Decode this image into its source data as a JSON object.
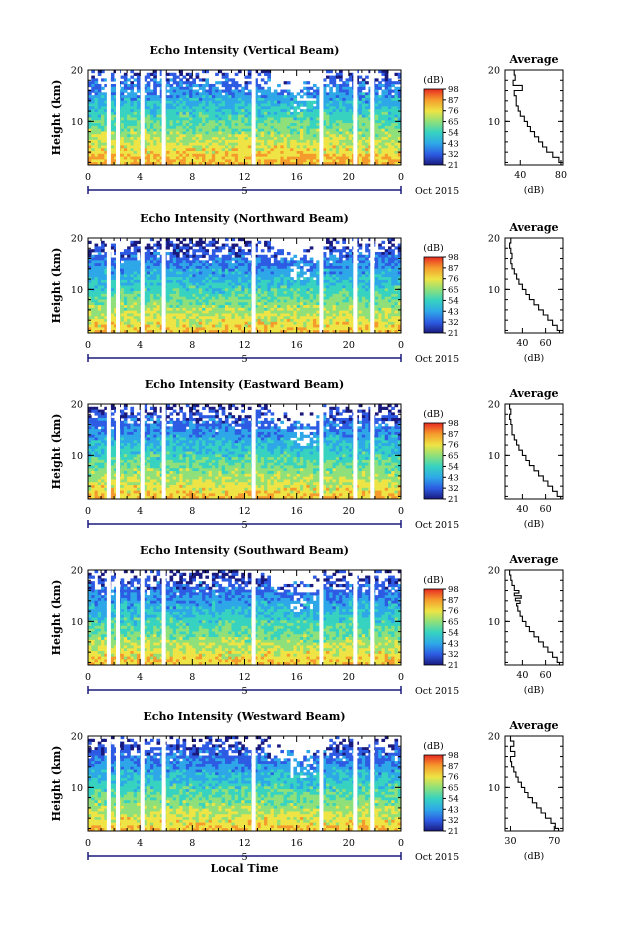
{
  "chart_data": [
    {
      "type": "heatmap",
      "title": "Echo Intensity (Vertical Beam)",
      "ylabel": "Height (km)",
      "yticks": [
        "20",
        "10"
      ],
      "xticks": [
        "0",
        "4",
        "8",
        "12",
        "16",
        "20",
        "0"
      ],
      "date_text": "5",
      "date_right": "Oct 2015",
      "xlim": [
        0,
        24
      ],
      "ylim": [
        1.5,
        20
      ],
      "colorbar": {
        "unit": "(dB)",
        "labels": [
          "98",
          "87",
          "76",
          "65",
          "54",
          "43",
          "32",
          "21"
        ],
        "range": [
          21,
          98
        ]
      },
      "profile": {
        "title": "Average",
        "xlabel": "(dB)",
        "xticks": [
          "40",
          "80"
        ],
        "xlim": [
          25,
          82
        ],
        "yticks": [
          "20",
          "10"
        ],
        "ylim": [
          1.5,
          20
        ],
        "heights": [
          1.5,
          2.0,
          3.0,
          4.0,
          5.0,
          6.0,
          7.0,
          8.0,
          9.0,
          10.0,
          11.0,
          12.0,
          13.0,
          14.0,
          15.0,
          16.0,
          17.0,
          18.0,
          19.0,
          20.0
        ],
        "values": [
          80,
          78,
          72,
          66,
          62,
          58,
          54,
          50,
          47,
          44,
          40,
          38,
          36,
          36,
          34,
          42,
          33,
          35,
          34,
          33
        ]
      }
    },
    {
      "type": "heatmap",
      "title": "Echo Intensity (Northward Beam)",
      "ylabel": "Height (km)",
      "yticks": [
        "20",
        "10"
      ],
      "xticks": [
        "0",
        "4",
        "8",
        "12",
        "16",
        "20",
        "0"
      ],
      "date_text": "5",
      "date_right": "Oct 2015",
      "xlim": [
        0,
        24
      ],
      "ylim": [
        1.5,
        20
      ],
      "colorbar": {
        "unit": "(dB)",
        "labels": [
          "98",
          "87",
          "76",
          "65",
          "54",
          "43",
          "32",
          "21"
        ],
        "range": [
          21,
          98
        ]
      },
      "profile": {
        "title": "Average",
        "xlabel": "(dB)",
        "xticks": [
          "40",
          "60"
        ],
        "xlim": [
          25,
          75
        ],
        "yticks": [
          "20",
          "10"
        ],
        "ylim": [
          1.5,
          20
        ],
        "heights": [
          1.5,
          2.0,
          3.0,
          4.0,
          5.0,
          6.0,
          7.0,
          8.0,
          9.0,
          10.0,
          11.0,
          12.0,
          13.0,
          14.0,
          15.0,
          16.0,
          17.0,
          18.0,
          19.0,
          20.0
        ],
        "values": [
          72,
          70,
          66,
          62,
          58,
          54,
          50,
          46,
          43,
          40,
          37,
          35,
          33,
          31,
          30,
          31,
          30,
          29,
          30,
          29
        ]
      }
    },
    {
      "type": "heatmap",
      "title": "Echo Intensity (Eastward Beam)",
      "ylabel": "Height (km)",
      "yticks": [
        "20",
        "10"
      ],
      "xticks": [
        "0",
        "4",
        "8",
        "12",
        "16",
        "20",
        "0"
      ],
      "date_text": "5",
      "date_right": "Oct 2015",
      "xlim": [
        0,
        24
      ],
      "ylim": [
        1.5,
        20
      ],
      "colorbar": {
        "unit": "(dB)",
        "labels": [
          "98",
          "87",
          "76",
          "65",
          "54",
          "43",
          "32",
          "21"
        ],
        "range": [
          21,
          98
        ]
      },
      "profile": {
        "title": "Average",
        "xlabel": "(dB)",
        "xticks": [
          "40",
          "60"
        ],
        "xlim": [
          25,
          75
        ],
        "yticks": [
          "20",
          "10"
        ],
        "ylim": [
          1.5,
          20
        ],
        "heights": [
          1.5,
          2.0,
          3.0,
          4.0,
          5.0,
          6.0,
          7.0,
          8.0,
          9.0,
          10.0,
          11.0,
          12.0,
          13.0,
          14.0,
          15.0,
          16.0,
          17.0,
          18.0,
          19.0,
          20.0
        ],
        "values": [
          73,
          70,
          66,
          62,
          58,
          54,
          50,
          46,
          43,
          40,
          37,
          35,
          33,
          31,
          31,
          30,
          29,
          30,
          29,
          29
        ]
      }
    },
    {
      "type": "heatmap",
      "title": "Echo Intensity (Southward Beam)",
      "ylabel": "Height (km)",
      "yticks": [
        "20",
        "10"
      ],
      "xticks": [
        "0",
        "4",
        "8",
        "12",
        "16",
        "20",
        "0"
      ],
      "date_text": "5",
      "date_right": "Oct 2015",
      "xlim": [
        0,
        24
      ],
      "ylim": [
        1.5,
        20
      ],
      "colorbar": {
        "unit": "(dB)",
        "labels": [
          "98",
          "87",
          "76",
          "65",
          "54",
          "43",
          "32",
          "21"
        ],
        "range": [
          21,
          98
        ]
      },
      "profile": {
        "title": "Average",
        "xlabel": "(dB)",
        "xticks": [
          "40",
          "60"
        ],
        "xlim": [
          25,
          75
        ],
        "yticks": [
          "20",
          "10"
        ],
        "ylim": [
          1.5,
          20
        ],
        "heights": [
          1.5,
          2.0,
          3.0,
          4.0,
          5.0,
          6.0,
          7.0,
          8.0,
          9.0,
          10.0,
          11.0,
          12.0,
          13.0,
          13.5,
          14.0,
          14.5,
          15.0,
          15.5,
          16.0,
          17.0,
          18.0,
          19.0,
          20.0
        ],
        "values": [
          72,
          70,
          66,
          62,
          58,
          54,
          50,
          46,
          43,
          40,
          38,
          36,
          35,
          38,
          34,
          39,
          33,
          37,
          33,
          31,
          30,
          29,
          30
        ]
      }
    },
    {
      "type": "heatmap",
      "title": "Echo Intensity (Westward Beam)",
      "ylabel": "Height (km)",
      "yticks": [
        "20",
        "10"
      ],
      "xticks": [
        "0",
        "4",
        "8",
        "12",
        "16",
        "20",
        "0"
      ],
      "date_text": "5",
      "date_right": "Oct 2015",
      "xlabel": "Local Time",
      "xlim": [
        0,
        24
      ],
      "ylim": [
        1.5,
        20
      ],
      "colorbar": {
        "unit": "(dB)",
        "labels": [
          "98",
          "87",
          "76",
          "65",
          "54",
          "43",
          "32",
          "21"
        ],
        "range": [
          21,
          98
        ]
      },
      "profile": {
        "title": "Average",
        "xlabel": "(dB)",
        "xticks": [
          "30",
          "70"
        ],
        "xlim": [
          25,
          78
        ],
        "yticks": [
          "20",
          "10"
        ],
        "ylim": [
          1.5,
          20
        ],
        "heights": [
          1.5,
          2.0,
          3.0,
          4.0,
          5.0,
          6.0,
          7.0,
          8.0,
          9.0,
          10.0,
          11.0,
          12.0,
          13.0,
          14.0,
          15.0,
          16.0,
          17.0,
          18.0,
          19.0,
          20.0
        ],
        "values": [
          74,
          71,
          67,
          62,
          58,
          54,
          50,
          46,
          43,
          40,
          37,
          35,
          33,
          31,
          30,
          34,
          30,
          33,
          30,
          29
        ]
      }
    }
  ],
  "colors": {
    "colormap": [
      "#1a1a7e",
      "#2d5be3",
      "#2ea7e8",
      "#37d3c0",
      "#8fe07a",
      "#eee445",
      "#f59a2c",
      "#e82a22"
    ],
    "data_gap": "#ffffff"
  }
}
